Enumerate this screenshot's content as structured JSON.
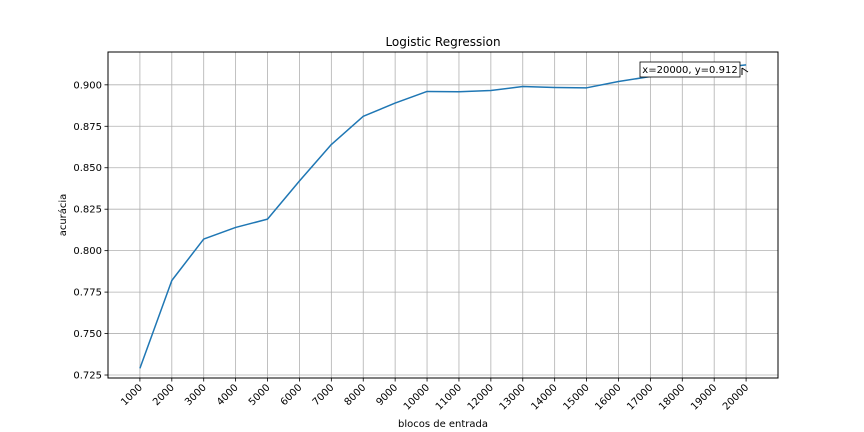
{
  "chart_data": {
    "type": "line",
    "title": "Logistic Regression",
    "xlabel": "blocos de entrada",
    "ylabel": "acurácia",
    "x": [
      1000,
      2000,
      3000,
      4000,
      5000,
      6000,
      7000,
      8000,
      9000,
      10000,
      11000,
      12000,
      13000,
      14000,
      15000,
      16000,
      17000,
      18000,
      19000,
      20000
    ],
    "x_tick_labels": [
      "1000",
      "2000",
      "3000",
      "4000",
      "5000",
      "6000",
      "7000",
      "8000",
      "9000",
      "10000",
      "11000",
      "12000",
      "13000",
      "14000",
      "15000",
      "16000",
      "17000",
      "18000",
      "19000",
      "20000"
    ],
    "series": [
      {
        "values": [
          0.729,
          0.782,
          0.807,
          0.814,
          0.819,
          0.842,
          0.864,
          0.881,
          0.889,
          0.896,
          0.8958,
          0.8966,
          0.899,
          0.8984,
          0.8982,
          0.902,
          0.905,
          0.907,
          0.91,
          0.912
        ],
        "color": "#1f77b4"
      }
    ],
    "xlim": [
      0,
      21000
    ],
    "ylim": [
      0.7232,
      0.9198
    ],
    "y_ticks": [
      0.725,
      0.75,
      0.775,
      0.8,
      0.825,
      0.85,
      0.875,
      0.9
    ],
    "y_tick_labels": [
      "0.725",
      "0.750",
      "0.775",
      "0.800",
      "0.825",
      "0.850",
      "0.875",
      "0.900"
    ],
    "grid": true,
    "annotation": {
      "text": "x=20000, y=0.912",
      "x": 20000,
      "y": 0.912
    }
  }
}
